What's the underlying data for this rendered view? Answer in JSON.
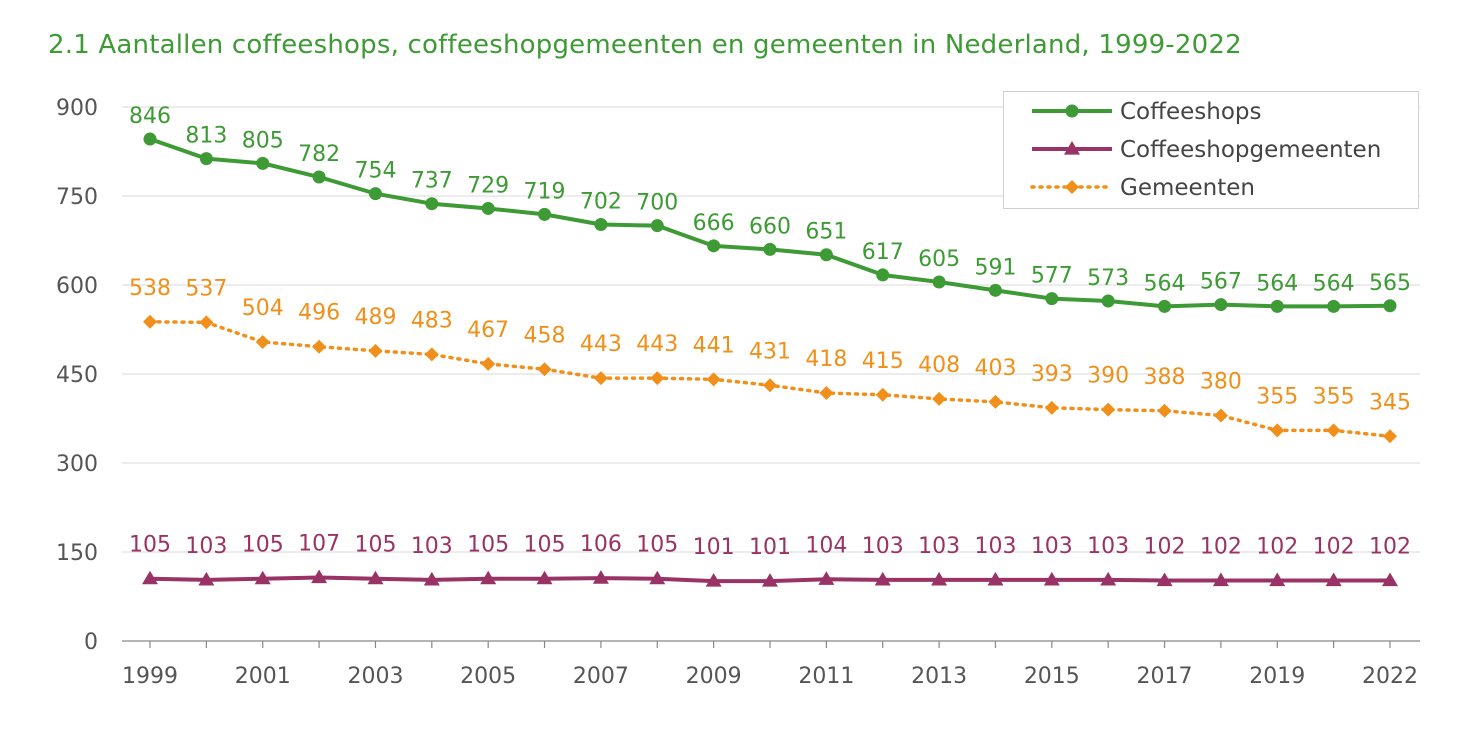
{
  "title": "2.1  Aantallen coffeeshops, coffeeshopgemeenten en gemeenten in Nederland, 1999-2022",
  "chart_data": {
    "type": "line",
    "x": [
      1999,
      2000,
      2001,
      2002,
      2003,
      2004,
      2005,
      2006,
      2007,
      2008,
      2009,
      2010,
      2011,
      2012,
      2013,
      2014,
      2015,
      2016,
      2017,
      2018,
      2019,
      2020,
      2022
    ],
    "x_tick_labels": [
      "1999",
      "2001",
      "2003",
      "2005",
      "2007",
      "2009",
      "2011",
      "2013",
      "2015",
      "2017",
      "2019",
      "2022"
    ],
    "ylim": [
      0,
      900
    ],
    "y_ticks": [
      0,
      150,
      300,
      450,
      600,
      750,
      900
    ],
    "grid": true,
    "legend_position": "top-right",
    "series": [
      {
        "name": "Coffeeshops",
        "color": "#3d9a35",
        "marker": "circle",
        "style": "solid",
        "values": [
          846,
          813,
          805,
          782,
          754,
          737,
          729,
          719,
          702,
          700,
          666,
          660,
          651,
          617,
          605,
          591,
          577,
          573,
          564,
          567,
          564,
          564,
          565
        ]
      },
      {
        "name": "Coffeeshopgemeenten",
        "color": "#993366",
        "marker": "triangle",
        "style": "solid",
        "values": [
          105,
          103,
          105,
          107,
          105,
          103,
          105,
          105,
          106,
          105,
          101,
          101,
          104,
          103,
          103,
          103,
          103,
          103,
          102,
          102,
          102,
          102,
          102
        ]
      },
      {
        "name": "Gemeenten",
        "color": "#f0901a",
        "marker": "diamond",
        "style": "dotted",
        "values": [
          538,
          537,
          504,
          496,
          489,
          483,
          467,
          458,
          443,
          443,
          441,
          431,
          418,
          415,
          408,
          403,
          393,
          390,
          388,
          380,
          355,
          355,
          345
        ]
      }
    ]
  }
}
